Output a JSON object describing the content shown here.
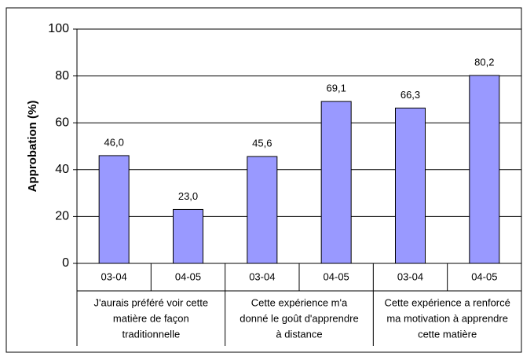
{
  "chart_data": {
    "type": "bar",
    "y_label": "Approbation (%)",
    "categories": [
      "03-04",
      "04-05",
      "03-04",
      "04-05",
      "03-04",
      "04-05"
    ],
    "groups": [
      [
        "J'aurais préféré voir cette",
        "matière de façon",
        "traditionnelle"
      ],
      [
        "Cette expérience m'a",
        "donné le goût d'apprendre",
        "à distance"
      ],
      [
        "Cette expérience a renforcé",
        "ma motivation à apprendre",
        "cette matière"
      ]
    ],
    "values": [
      46.0,
      23.0,
      45.6,
      69.1,
      66.3,
      80.2
    ],
    "value_labels": [
      "46,0",
      "23,0",
      "45,6",
      "69,1",
      "66,3",
      "80,2"
    ],
    "color": "#9999ff",
    "ylim": [
      0,
      100
    ],
    "yticks": [
      0,
      20,
      40,
      60,
      80,
      100
    ],
    "grid": true
  }
}
